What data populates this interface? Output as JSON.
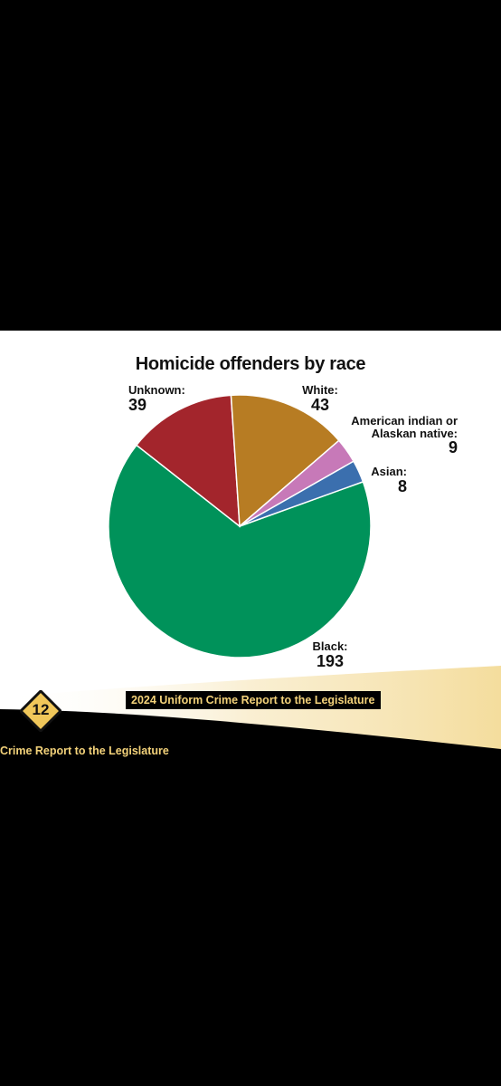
{
  "report_title": "2024 Uniform Crime Report to the Legislature",
  "page_number": "12",
  "footer_text": "Crime Report to the Legislature",
  "chart_data": {
    "type": "pie",
    "title": "Homicide offenders by race",
    "slices": [
      {
        "label": "Black:",
        "value": 193,
        "color": "#00925a"
      },
      {
        "label": "Unknown:",
        "value": 39,
        "color": "#a3252c"
      },
      {
        "label": "White:",
        "value": 43,
        "color": "#b77c23"
      },
      {
        "label": "American indian or Alaskan native:",
        "value": 9,
        "color": "#c779b8"
      },
      {
        "label": "Asian:",
        "value": 8,
        "color": "#3b6fae"
      }
    ]
  }
}
